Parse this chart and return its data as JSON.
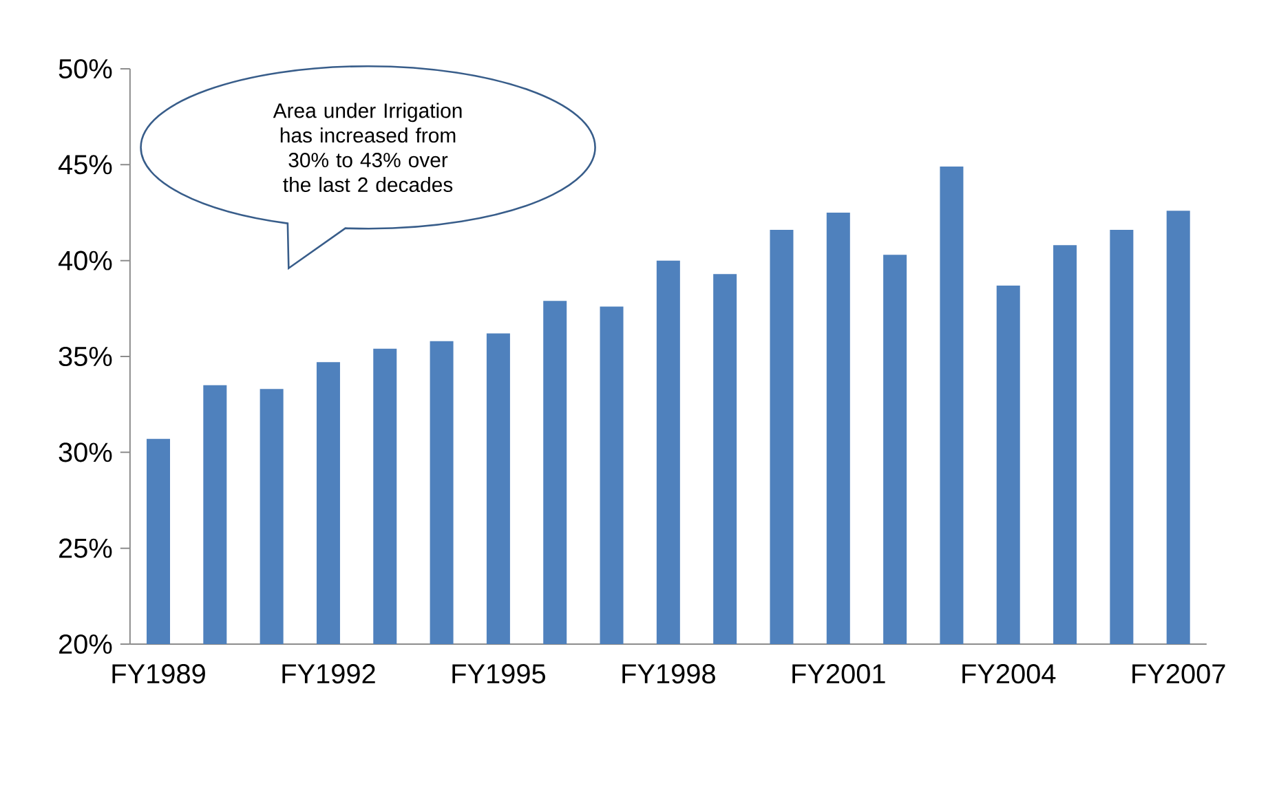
{
  "chart_data": {
    "type": "bar",
    "categories": [
      "FY1989",
      null,
      null,
      "FY1992",
      null,
      null,
      "FY1995",
      null,
      null,
      "FY1998",
      null,
      null,
      "FY2001",
      null,
      null,
      "FY2004",
      null,
      null,
      "FY2007"
    ],
    "values": [
      30.7,
      33.5,
      33.3,
      34.7,
      35.4,
      35.8,
      36.2,
      37.9,
      37.6,
      40.0,
      39.3,
      41.6,
      42.5,
      40.3,
      44.9,
      38.7,
      40.8,
      41.6,
      42.6
    ],
    "color": "#4f81bd",
    "ylim": [
      20,
      50
    ],
    "yticks": [
      {
        "value": 20,
        "label": "20%"
      },
      {
        "value": 25,
        "label": "25%"
      },
      {
        "value": 30,
        "label": "30%"
      },
      {
        "value": 35,
        "label": "35%"
      },
      {
        "value": 40,
        "label": "40%"
      },
      {
        "value": 45,
        "label": "45%"
      },
      {
        "value": 50,
        "label": "50%"
      }
    ],
    "annotations": [
      "Area under Irrigation has increased from 30% to 43% over the last 2 decades"
    ]
  }
}
